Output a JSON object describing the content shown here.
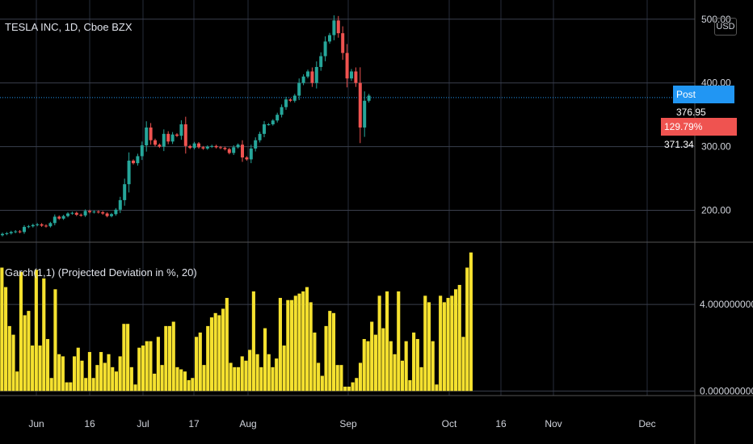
{
  "header": {
    "title": "TESLA INC, 1D, Cboe BZX",
    "currency": "USD"
  },
  "indicator": {
    "title": "Garch(1,1) (Projected Deviation in %, 20)"
  },
  "price_axis": {
    "labels": [
      "500.00",
      "400.00",
      "300.00",
      "200.00"
    ]
  },
  "indicator_axis": {
    "labels": [
      "4.0000000000",
      "0.0000000000"
    ]
  },
  "time_axis": {
    "labels": [
      "Jun",
      "16",
      "Jul",
      "17",
      "Aug",
      "Sep",
      "Oct",
      "16",
      "Nov",
      "Dec"
    ]
  },
  "badges": {
    "post_label": "Post",
    "post_value": "376.95",
    "vol_label": "129.79%",
    "vol_value": "371.34"
  },
  "colors": {
    "up": "#26a69a",
    "down": "#ef5350",
    "garch": "#f5e12f",
    "post": "#2196f3",
    "grid": "#262b3a"
  },
  "chart_data": [
    {
      "type": "candlestick",
      "title": "TESLA INC, 1D, Cboe BZX",
      "ylim": [
        150,
        520
      ],
      "x_range": [
        "2020-05-22",
        "2020-12-21"
      ],
      "close": [
        163,
        164,
        166,
        167,
        166,
        174,
        175,
        177,
        178,
        176,
        175,
        180,
        190,
        187,
        191,
        195,
        196,
        193,
        192,
        199,
        197,
        198,
        197,
        195,
        191,
        194,
        201,
        216,
        241,
        278,
        274,
        285,
        302,
        330,
        310,
        303,
        300,
        320,
        308,
        319,
        317,
        335,
        301,
        298,
        305,
        299,
        297,
        300,
        301,
        299,
        298,
        296,
        290,
        299,
        303,
        283,
        280,
        297,
        310,
        320,
        335,
        335,
        341,
        350,
        362,
        374,
        372,
        380,
        400,
        410,
        418,
        400,
        425,
        442,
        465,
        475,
        498,
        478,
        447,
        407,
        418,
        400,
        330,
        372,
        380
      ]
    },
    {
      "type": "bar",
      "title": "Garch(1,1) (Projected Deviation in %, 20)",
      "ylim": [
        -0.1,
        6.8
      ],
      "yticks": [
        0,
        4
      ],
      "values": [
        5.7,
        4.8,
        3.0,
        2.6,
        0.9,
        5.5,
        3.5,
        3.7,
        2.1,
        5.6,
        2.1,
        5.2,
        2.4,
        0.6,
        4.7,
        1.7,
        1.6,
        0.4,
        0.4,
        1.6,
        2.0,
        1.4,
        0.6,
        1.8,
        0.6,
        1.2,
        1.8,
        1.3,
        1.7,
        1.1,
        0.9,
        1.6,
        3.1,
        3.1,
        1.1,
        0.3,
        2.0,
        2.1,
        2.3,
        2.3,
        0.8,
        2.5,
        1.2,
        3.0,
        3.0,
        3.2,
        1.1,
        1.0,
        0.9,
        0.5,
        0.6,
        2.5,
        2.7,
        1.2,
        3.0,
        3.4,
        3.6,
        3.5,
        3.8,
        4.3,
        1.3,
        1.1,
        1.1,
        1.6,
        1.4,
        1.9,
        4.6,
        1.7,
        1.1,
        2.9,
        1.7,
        1.1,
        1.5,
        4.3,
        2.1,
        4.2,
        4.2,
        4.4,
        4.5,
        4.6,
        4.8,
        4.1,
        2.7,
        1.3,
        0.7,
        3.0,
        3.7,
        3.6,
        1.2,
        1.2,
        0.2,
        0.2,
        0.4,
        0.6,
        1.3,
        2.4,
        2.3,
        3.2,
        2.6,
        4.4,
        2.9,
        4.6,
        2.3,
        1.7,
        4.6,
        1.4,
        2.3,
        0.5,
        2.7,
        2.4,
        1.1,
        4.4,
        4.1,
        2.3,
        0.3,
        4.4,
        4.1,
        4.3,
        4.4,
        4.7,
        4.9,
        2.5,
        5.7,
        6.4
      ]
    }
  ]
}
